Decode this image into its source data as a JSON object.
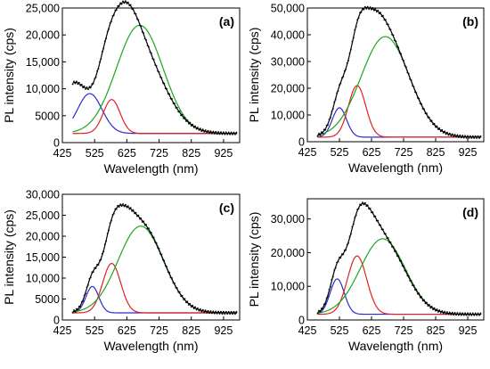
{
  "chart_data": [
    {
      "type": "line",
      "panel_label": "(a)",
      "xlabel": "Wavelength (nm)",
      "ylabel": "PL intensity (cps)",
      "xlim": [
        425,
        975
      ],
      "ylim": [
        0,
        25000
      ],
      "x_ticks": [
        425,
        525,
        625,
        725,
        825,
        925
      ],
      "y_ticks": [
        0,
        5000,
        10000,
        15000,
        20000,
        25000
      ],
      "y_tick_labels": [
        "0",
        "5000",
        "10,000",
        "15,000",
        "20,000",
        "25,000"
      ],
      "baseline": 1700,
      "measured": {
        "color": "#000000",
        "peaks": [
          [
            460,
            8800,
            40
          ],
          [
            560,
            4800,
            30
          ],
          [
            610,
            10600,
            45
          ],
          [
            660,
            15300,
            78
          ]
        ]
      },
      "components": [
        {
          "color": "#2b2bd0",
          "center": 510,
          "amp": 7400,
          "sigma": 38
        },
        {
          "color": "#e02020",
          "center": 578,
          "amp": 6300,
          "sigma": 26
        },
        {
          "color": "#1fa51f",
          "center": 665,
          "amp": 20100,
          "sigma": 72
        }
      ]
    },
    {
      "type": "line",
      "panel_label": "(b)",
      "xlabel": "Wavelength (nm)",
      "ylabel": "PL intensity (cps)",
      "xlim": [
        425,
        975
      ],
      "ylim": [
        0,
        50000
      ],
      "x_ticks": [
        425,
        525,
        625,
        725,
        825,
        925
      ],
      "y_ticks": [
        0,
        10000,
        20000,
        30000,
        40000,
        50000
      ],
      "y_tick_labels": [
        "0",
        "10,000",
        "20,000",
        "30,000",
        "40,000",
        "50,000"
      ],
      "baseline": 1700,
      "measured": {
        "color": "#000000",
        "peaks": [
          [
            525,
            10500,
            22
          ],
          [
            580,
            17900,
            27
          ],
          [
            625,
            12000,
            38
          ],
          [
            668,
            37300,
            75
          ]
        ]
      },
      "components": [
        {
          "color": "#2b2bd0",
          "center": 525,
          "amp": 11000,
          "sigma": 22
        },
        {
          "color": "#e02020",
          "center": 580,
          "amp": 19300,
          "sigma": 27
        },
        {
          "color": "#1fa51f",
          "center": 668,
          "amp": 37600,
          "sigma": 75
        }
      ]
    },
    {
      "type": "line",
      "panel_label": "(c)",
      "xlabel": "Wavelength (nm)",
      "ylabel": "PL intensity (cps)",
      "xlim": [
        425,
        975
      ],
      "ylim": [
        0,
        30000
      ],
      "x_ticks": [
        425,
        525,
        625,
        725,
        825,
        925
      ],
      "y_ticks": [
        0,
        5000,
        10000,
        15000,
        20000,
        25000,
        30000
      ],
      "y_tick_labels": [
        "0",
        "5000",
        "10,000",
        "15,000",
        "20,000",
        "25,000",
        "30,000"
      ],
      "baseline": 1700,
      "measured": {
        "color": "#000000",
        "peaks": [
          [
            518,
            6300,
            20
          ],
          [
            578,
            11700,
            28
          ],
          [
            622,
            5200,
            28
          ],
          [
            668,
            21000,
            70
          ]
        ]
      },
      "components": [
        {
          "color": "#2b2bd0",
          "center": 518,
          "amp": 6300,
          "sigma": 20
        },
        {
          "color": "#e02020",
          "center": 578,
          "amp": 11800,
          "sigma": 28
        },
        {
          "color": "#1fa51f",
          "center": 668,
          "amp": 20700,
          "sigma": 70
        }
      ]
    },
    {
      "type": "line",
      "panel_label": "(d)",
      "xlabel": "Wavelength (nm)",
      "ylabel": "PL intensity (cps)",
      "xlim": [
        425,
        975
      ],
      "ylim": [
        0,
        36000
      ],
      "x_ticks": [
        425,
        525,
        625,
        725,
        825,
        925
      ],
      "y_ticks": [
        0,
        10000,
        20000,
        30000
      ],
      "y_tick_labels": [
        "0",
        "10,000",
        "20,000",
        "30,000"
      ],
      "baseline": 1700,
      "measured": {
        "color": "#000000",
        "peaks": [
          [
            518,
            10500,
            22
          ],
          [
            580,
            17200,
            30
          ],
          [
            625,
            6000,
            30
          ],
          [
            660,
            21500,
            70
          ]
        ]
      },
      "components": [
        {
          "color": "#2b2bd0",
          "center": 518,
          "amp": 10500,
          "sigma": 22
        },
        {
          "color": "#e02020",
          "center": 580,
          "amp": 17300,
          "sigma": 30
        },
        {
          "color": "#1fa51f",
          "center": 660,
          "amp": 22400,
          "sigma": 70
        }
      ]
    }
  ]
}
